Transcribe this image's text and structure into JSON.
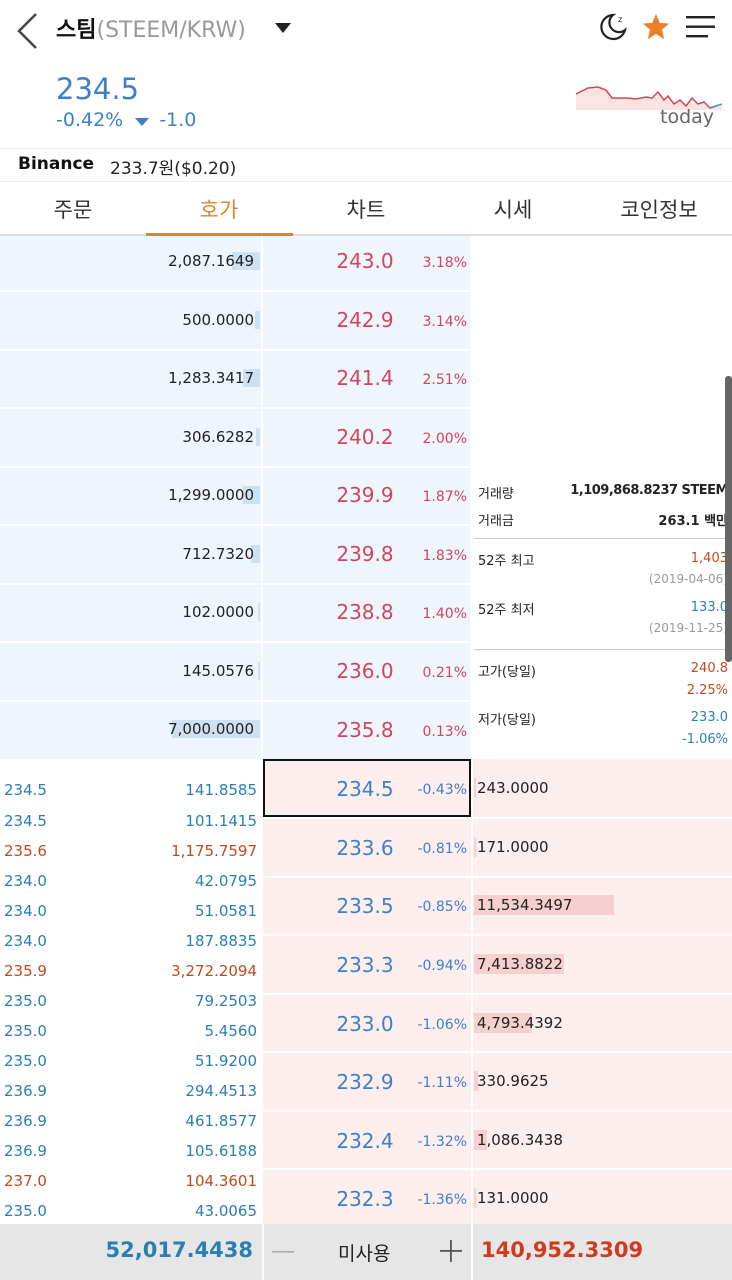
{
  "header": {
    "title": "스팀",
    "pair": "(STEEM/KRW)",
    "back_icon": "back-chevron-icon",
    "dropdown_icon": "dropdown-triangle-icon"
  },
  "ticker": {
    "price": "234.5",
    "change_pct": "-0.42%",
    "change_abs": "-1.0",
    "sparkline_label": "today"
  },
  "binance": {
    "label": "Binance",
    "value": "233.7원($0.20)"
  },
  "tabs": [
    "주문",
    "호가",
    "차트",
    "시세",
    "코인정보"
  ],
  "asks": [
    {
      "qty": "2,087.1649",
      "price": "243.0",
      "pct": "3.18%"
    },
    {
      "qty": "500.0000",
      "price": "242.9",
      "pct": "3.14%"
    },
    {
      "qty": "1,283.3417",
      "price": "241.4",
      "pct": "2.51%"
    },
    {
      "qty": "306.6282",
      "price": "240.2",
      "pct": "2.00%"
    },
    {
      "qty": "1,299.0000",
      "price": "239.9",
      "pct": "1.87%"
    },
    {
      "qty": "712.7320",
      "price": "239.8",
      "pct": "1.83%"
    },
    {
      "qty": "102.0000",
      "price": "238.8",
      "pct": "1.40%"
    },
    {
      "qty": "145.0576",
      "price": "236.0",
      "pct": "0.21%"
    },
    {
      "qty": "7,000.0000",
      "price": "235.8",
      "pct": "0.13%"
    }
  ],
  "bids": [
    {
      "qty": "243.0000",
      "price": "234.5",
      "pct": "-0.43%"
    },
    {
      "qty": "171.0000",
      "price": "233.6",
      "pct": "-0.81%"
    },
    {
      "qty": "11,534.3497",
      "price": "233.5",
      "pct": "-0.85%"
    },
    {
      "qty": "7,413.8822",
      "price": "233.3",
      "pct": "-0.94%"
    },
    {
      "qty": "4,793.4392",
      "price": "233.0",
      "pct": "-1.06%"
    },
    {
      "qty": "330.9625",
      "price": "232.9",
      "pct": "-1.11%"
    },
    {
      "qty": "1,086.3438",
      "price": "232.4",
      "pct": "-1.32%"
    },
    {
      "qty": "131.0000",
      "price": "232.3",
      "pct": "-1.36%"
    }
  ],
  "trades": [
    {
      "price": "234.5",
      "qty": "141.8585",
      "side": "sell"
    },
    {
      "price": "234.5",
      "qty": "101.1415",
      "side": "sell"
    },
    {
      "price": "235.6",
      "qty": "1,175.7597",
      "side": "buy"
    },
    {
      "price": "234.0",
      "qty": "42.0795",
      "side": "sell"
    },
    {
      "price": "234.0",
      "qty": "51.0581",
      "side": "sell"
    },
    {
      "price": "234.0",
      "qty": "187.8835",
      "side": "sell"
    },
    {
      "price": "235.9",
      "qty": "3,272.2094",
      "side": "buy"
    },
    {
      "price": "235.0",
      "qty": "79.2503",
      "side": "sell"
    },
    {
      "price": "235.0",
      "qty": "5.4560",
      "side": "sell"
    },
    {
      "price": "235.0",
      "qty": "51.9200",
      "side": "sell"
    },
    {
      "price": "236.9",
      "qty": "294.4513",
      "side": "sell"
    },
    {
      "price": "236.9",
      "qty": "461.8577",
      "side": "sell"
    },
    {
      "price": "236.9",
      "qty": "105.6188",
      "side": "sell"
    },
    {
      "price": "237.0",
      "qty": "104.3601",
      "side": "buy"
    },
    {
      "price": "235.0",
      "qty": "43.0065",
      "side": "sell"
    }
  ],
  "stats": {
    "volume_label": "거래량",
    "volume_value": "1,109,868.8237 STEEM",
    "amount_label": "거래금",
    "amount_value": "263.1 백만",
    "high52_label": "52주 최고",
    "high52_value": "1,403",
    "high52_date": "(2019-04-06)",
    "low52_label": "52주 최저",
    "low52_value": "133.0",
    "low52_date": "(2019-11-25)",
    "high_label": "고가(당일)",
    "high_value": "240.8",
    "high_pct": "2.25%",
    "low_label": "저가(당일)",
    "low_value": "233.0",
    "low_pct": "-1.06%"
  },
  "footer": {
    "ask_total": "52,017.4438",
    "unused": "미사용",
    "bid_total": "140,952.3309"
  },
  "colors": {
    "accent": "#e0832d",
    "up": "#d2455a",
    "down": "#3f7fca",
    "ask_bg": "#eef5fd",
    "bid_bg": "#fdeeee"
  }
}
